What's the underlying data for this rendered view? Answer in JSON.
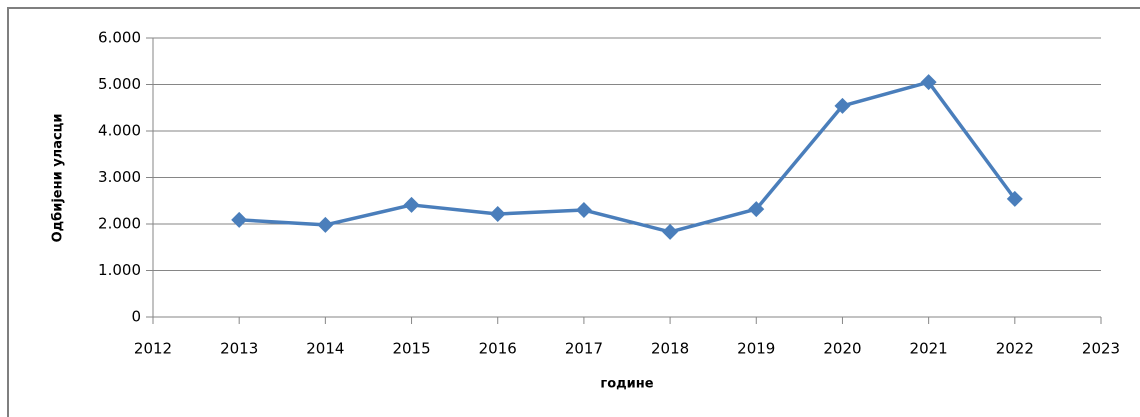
{
  "chart_data": {
    "type": "line",
    "x": [
      2013,
      2014,
      2015,
      2016,
      2017,
      2018,
      2019,
      2020,
      2021,
      2022
    ],
    "values": [
      2090,
      1980,
      2410,
      2215,
      2300,
      1830,
      2320,
      4540,
      5050,
      2540
    ],
    "color": "#4a7ebb",
    "xlabel": "године",
    "ylabel": "Одбијени уласци",
    "xlim": [
      2012,
      2023
    ],
    "xticks": [
      2012,
      2013,
      2014,
      2015,
      2016,
      2017,
      2018,
      2019,
      2020,
      2021,
      2022,
      2023
    ],
    "ylim": [
      0,
      6000
    ],
    "yticks": [
      0,
      {
        "value": 1000,
        "label": "1.000"
      },
      {
        "value": 2000,
        "label": "2.000"
      },
      {
        "value": 3000,
        "label": "3.000"
      },
      {
        "value": 4000,
        "label": "4.000"
      },
      {
        "value": 5000,
        "label": "5.000"
      },
      {
        "value": 6000,
        "label": "6.000"
      }
    ],
    "grid": true
  }
}
